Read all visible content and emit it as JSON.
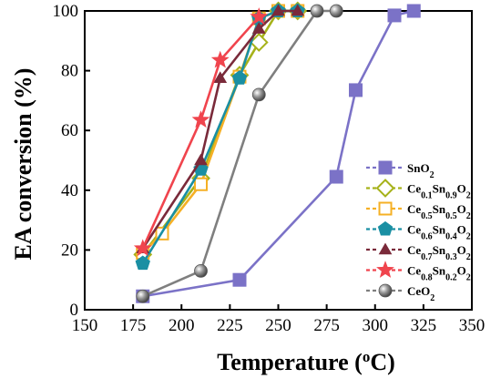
{
  "chart_data": {
    "type": "line",
    "xlabel": "Temperature (oC)",
    "xlabel_parts": [
      "Temperature (",
      "o",
      "C)"
    ],
    "ylabel": "EA conversion (%)",
    "xlim": [
      150,
      350
    ],
    "ylim": [
      0,
      100
    ],
    "xticks": [
      150,
      175,
      200,
      225,
      250,
      275,
      300,
      325,
      350
    ],
    "yticks": [
      0,
      20,
      40,
      60,
      80,
      100
    ],
    "grid": false,
    "legend_position": "bottom-right",
    "series": [
      {
        "name": "SnO2",
        "name_parts": [
          [
            "Sn",
            ""
          ],
          [
            "O",
            ""
          ],
          [
            "2",
            "sub"
          ]
        ],
        "color": "#7b72c7",
        "marker": "square",
        "marker_fill": "filled",
        "x": [
          180,
          230,
          280,
          290,
          310,
          320
        ],
        "y": [
          4.5,
          10,
          44.5,
          73.5,
          98.5,
          100
        ]
      },
      {
        "name": "Ce0.1Sn0.9O2",
        "name_parts": [
          [
            "Ce",
            ""
          ],
          [
            "0.1",
            "sub"
          ],
          [
            "Sn",
            ""
          ],
          [
            "0.9",
            "sub"
          ],
          [
            "O",
            ""
          ],
          [
            "2",
            "sub"
          ]
        ],
        "color": "#a6b21a",
        "marker": "diamond",
        "marker_fill": "hollow",
        "x": [
          180,
          210,
          230,
          240,
          250,
          260
        ],
        "y": [
          18.5,
          44,
          78.5,
          89.5,
          100,
          100
        ]
      },
      {
        "name": "Ce0.5Sn0.5O2",
        "name_parts": [
          [
            "Ce",
            ""
          ],
          [
            "0.5",
            "sub"
          ],
          [
            "Sn",
            ""
          ],
          [
            "0.5",
            "sub"
          ],
          [
            "O",
            ""
          ],
          [
            "2",
            "sub"
          ]
        ],
        "color": "#f5b025",
        "marker": "square",
        "marker_fill": "hollow",
        "x": [
          180,
          190,
          210,
          230,
          240,
          250,
          260
        ],
        "y": [
          19,
          25.5,
          42,
          78,
          97.5,
          100,
          100
        ]
      },
      {
        "name": "Ce0.6Sn0.4O2",
        "name_parts": [
          [
            "Ce",
            ""
          ],
          [
            "0.6",
            "sub"
          ],
          [
            "Sn",
            ""
          ],
          [
            "0.4",
            "sub"
          ],
          [
            "O",
            ""
          ],
          [
            "2",
            "sub"
          ]
        ],
        "color": "#1a8fa3",
        "marker": "pentagon",
        "marker_fill": "filled",
        "x": [
          180,
          210,
          230,
          240,
          250,
          260
        ],
        "y": [
          15.5,
          47,
          77.5,
          97.5,
          100,
          100
        ]
      },
      {
        "name": "Ce0.7Sn0.3O2",
        "name_parts": [
          [
            "Ce",
            ""
          ],
          [
            "0.7",
            "sub"
          ],
          [
            "Sn",
            ""
          ],
          [
            "0.3",
            "sub"
          ],
          [
            "O",
            ""
          ],
          [
            "2",
            "sub"
          ]
        ],
        "color": "#7a2a3a",
        "marker": "triangle",
        "marker_fill": "filled",
        "x": [
          180,
          210,
          220,
          240,
          250,
          260
        ],
        "y": [
          20.5,
          50,
          77.5,
          94,
          100,
          100
        ]
      },
      {
        "name": "Ce0.8Sn0.2O2",
        "name_parts": [
          [
            "Ce",
            ""
          ],
          [
            "0.8",
            "sub"
          ],
          [
            "Sn",
            ""
          ],
          [
            "0.2",
            "sub"
          ],
          [
            "O",
            ""
          ],
          [
            "2",
            "sub"
          ]
        ],
        "color": "#f0444d",
        "marker": "star",
        "marker_fill": "filled",
        "x": [
          180,
          210,
          220,
          240
        ],
        "y": [
          20.5,
          63.5,
          83.5,
          98
        ]
      },
      {
        "name": "CeO2",
        "name_parts": [
          [
            "Ce",
            ""
          ],
          [
            "O",
            ""
          ],
          [
            "2",
            "sub"
          ]
        ],
        "color": "#7f7f7f",
        "marker": "sphere",
        "marker_fill": "gradient",
        "x": [
          180,
          210,
          240,
          270,
          280
        ],
        "y": [
          4.5,
          13,
          72,
          100,
          100
        ]
      }
    ]
  }
}
